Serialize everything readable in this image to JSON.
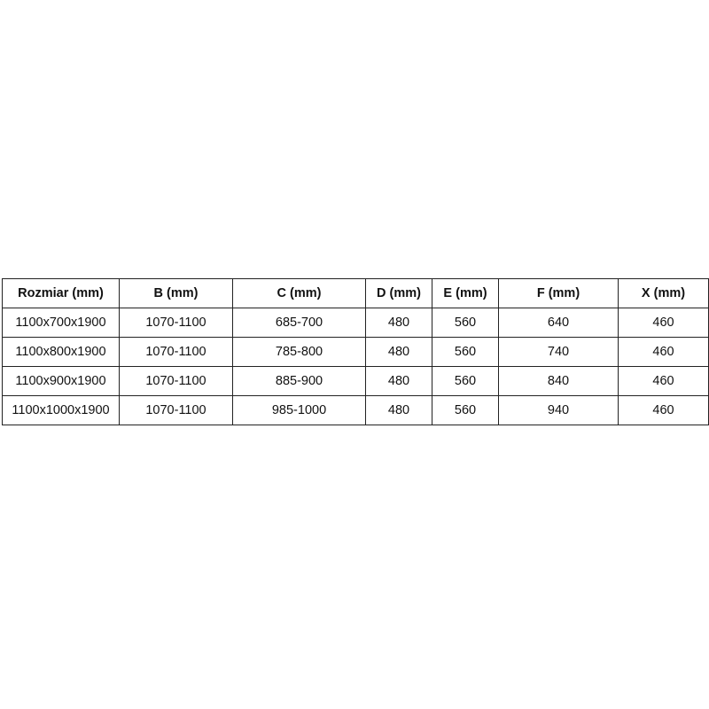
{
  "table": {
    "headers": [
      "Rozmiar (mm)",
      "B (mm)",
      "C (mm)",
      "D (mm)",
      "E (mm)",
      "F (mm)",
      "X (mm)"
    ],
    "rows": [
      [
        "1100x700x1900",
        "1070-1100",
        "685-700",
        "480",
        "560",
        "640",
        "460"
      ],
      [
        "1100x800x1900",
        "1070-1100",
        "785-800",
        "480",
        "560",
        "740",
        "460"
      ],
      [
        "1100x900x1900",
        "1070-1100",
        "885-900",
        "480",
        "560",
        "840",
        "460"
      ],
      [
        "1100x1000x1900",
        "1070-1100",
        "985-1000",
        "480",
        "560",
        "940",
        "460"
      ]
    ]
  }
}
